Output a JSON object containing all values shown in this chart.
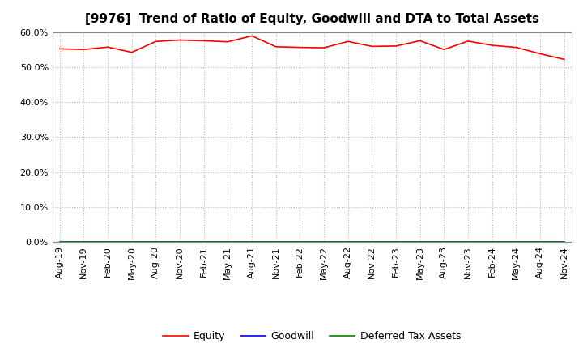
{
  "title": "[9976]  Trend of Ratio of Equity, Goodwill and DTA to Total Assets",
  "x_labels": [
    "Aug-19",
    "Nov-19",
    "Feb-20",
    "May-20",
    "Aug-20",
    "Nov-20",
    "Feb-21",
    "May-21",
    "Aug-21",
    "Nov-21",
    "Feb-22",
    "May-22",
    "Aug-22",
    "Nov-22",
    "Feb-23",
    "May-23",
    "Aug-23",
    "Nov-23",
    "Feb-24",
    "May-24",
    "Aug-24",
    "Nov-24"
  ],
  "equity": [
    55.2,
    55.0,
    55.7,
    54.2,
    57.3,
    57.7,
    57.5,
    57.2,
    58.9,
    55.8,
    55.6,
    55.5,
    57.3,
    55.9,
    56.0,
    57.5,
    55.0,
    57.4,
    56.2,
    55.6,
    53.8,
    52.2
  ],
  "goodwill": [
    0.0,
    0.0,
    0.0,
    0.0,
    0.0,
    0.0,
    0.0,
    0.0,
    0.0,
    0.0,
    0.0,
    0.0,
    0.0,
    0.0,
    0.0,
    0.0,
    0.0,
    0.0,
    0.0,
    0.0,
    0.0,
    0.0
  ],
  "dta": [
    0.0,
    0.0,
    0.0,
    0.0,
    0.0,
    0.0,
    0.0,
    0.0,
    0.0,
    0.0,
    0.0,
    0.0,
    0.0,
    0.0,
    0.0,
    0.0,
    0.0,
    0.0,
    0.0,
    0.0,
    0.0,
    0.0
  ],
  "equity_color": "#ff0000",
  "goodwill_color": "#0000ff",
  "dta_color": "#008000",
  "ylim": [
    0,
    60
  ],
  "yticks": [
    0,
    10,
    20,
    30,
    40,
    50,
    60
  ],
  "background_color": "#ffffff",
  "plot_bg_color": "#ffffff",
  "grid_color": "#bbbbbb",
  "title_fontsize": 11,
  "tick_fontsize": 8,
  "legend_fontsize": 9
}
